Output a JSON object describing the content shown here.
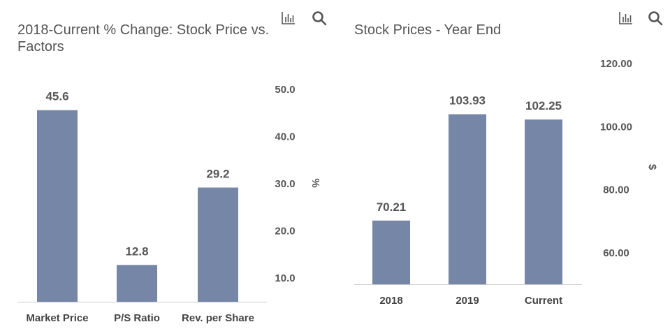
{
  "colors": {
    "bar": "#7586a6",
    "axis": "#cccccc",
    "text": "#444444"
  },
  "icons": {
    "chart": "bar-chart-icon",
    "search": "magnifier-icon"
  },
  "chart_data": [
    {
      "type": "bar",
      "title": "2018-Current % Change: Stock Price vs. Factors",
      "categories": [
        "Market Price",
        "P/S Ratio",
        "Rev. per Share"
      ],
      "values": [
        45.6,
        12.8,
        29.2
      ],
      "value_labels": [
        "45.6",
        "12.8",
        "29.2"
      ],
      "ylabel": "%",
      "yticks": [
        "10.0",
        "20.0",
        "30.0",
        "40.0",
        "50.0"
      ],
      "ytick_values": [
        10,
        20,
        30,
        40,
        50
      ],
      "ylim": [
        5,
        50
      ],
      "axis_side": "right",
      "grid": false
    },
    {
      "type": "bar",
      "title": "Stock Prices - Year End",
      "categories": [
        "2018",
        "2019",
        "Current"
      ],
      "values": [
        70.21,
        103.93,
        102.25
      ],
      "value_labels": [
        "70.21",
        "103.93",
        "102.25"
      ],
      "ylabel": "$",
      "yticks": [
        "60.00",
        "80.00",
        "100.00",
        "120.00"
      ],
      "ytick_values": [
        60,
        80,
        100,
        120
      ],
      "ylim": [
        50,
        120
      ],
      "axis_side": "right",
      "grid": false
    }
  ]
}
